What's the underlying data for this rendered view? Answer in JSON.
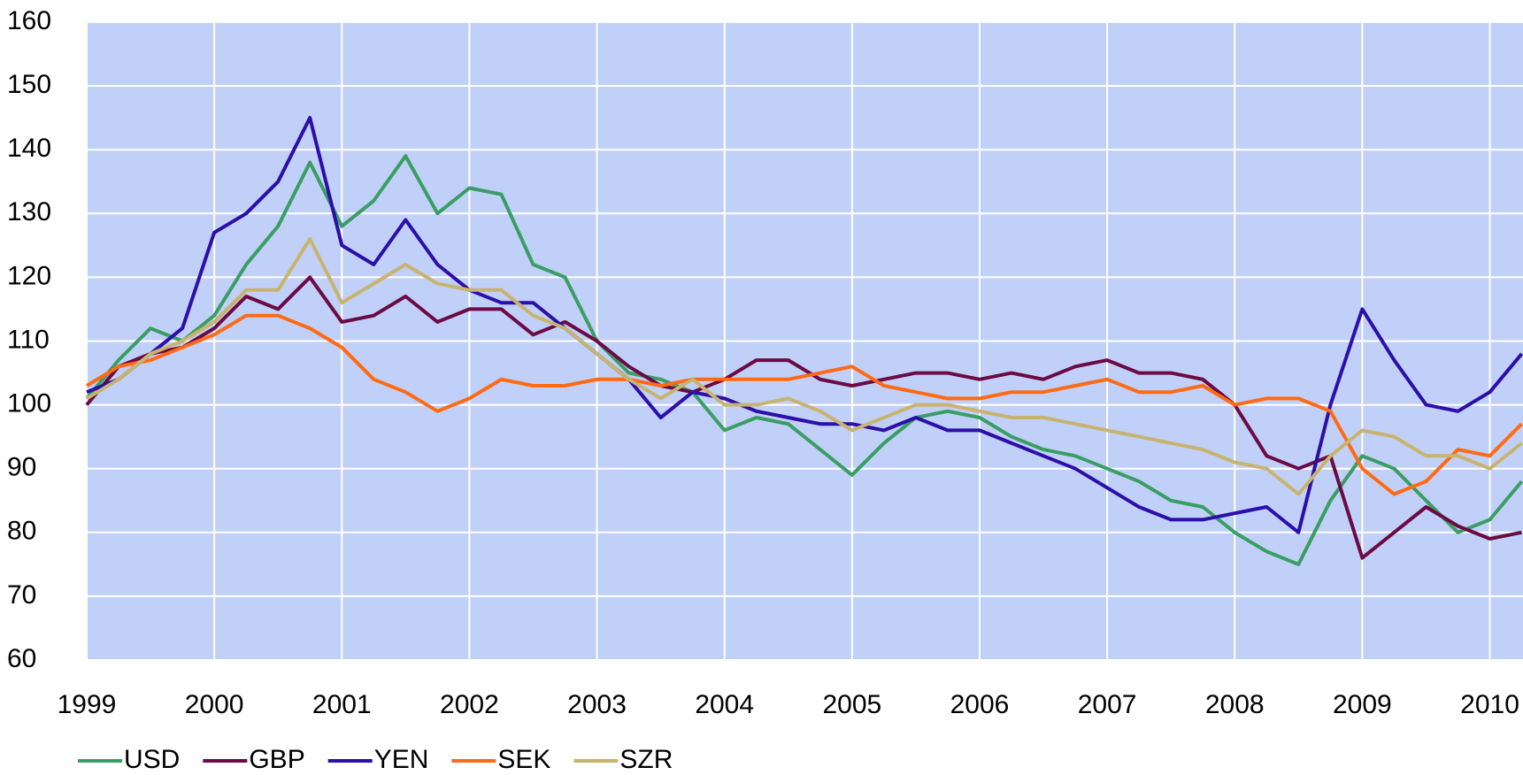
{
  "chart_data": {
    "type": "line",
    "x": [
      1999,
      1999.25,
      1999.5,
      1999.75,
      2000,
      2000.25,
      2000.5,
      2000.75,
      2001,
      2001.25,
      2001.5,
      2001.75,
      2002,
      2002.25,
      2002.5,
      2002.75,
      2003,
      2003.25,
      2003.5,
      2003.75,
      2004,
      2004.25,
      2004.5,
      2004.75,
      2005,
      2005.25,
      2005.5,
      2005.75,
      2006,
      2006.25,
      2006.5,
      2006.75,
      2007,
      2007.25,
      2007.5,
      2007.75,
      2008,
      2008.25,
      2008.5,
      2008.75,
      2009,
      2009.25,
      2009.5,
      2009.75,
      2010,
      2010.25
    ],
    "series": [
      {
        "name": "USD",
        "color": "#3a9e64",
        "values": [
          101,
          107,
          112,
          110,
          114,
          122,
          128,
          138,
          128,
          132,
          139,
          130,
          134,
          133,
          122,
          120,
          110,
          105,
          104,
          102,
          96,
          98,
          97,
          93,
          89,
          94,
          98,
          99,
          98,
          95,
          93,
          92,
          90,
          88,
          85,
          84,
          80,
          77,
          75,
          85,
          92,
          90,
          85,
          80,
          82,
          88
        ]
      },
      {
        "name": "GBP",
        "color": "#6b0a44",
        "values": [
          100,
          106,
          108,
          109,
          112,
          117,
          115,
          120,
          113,
          114,
          117,
          113,
          115,
          115,
          111,
          113,
          110,
          106,
          103,
          102,
          104,
          107,
          107,
          104,
          103,
          104,
          105,
          105,
          104,
          105,
          104,
          106,
          107,
          105,
          105,
          104,
          100,
          92,
          90,
          92,
          76,
          80,
          84,
          81,
          79,
          80
        ]
      },
      {
        "name": "YEN",
        "color": "#2b0fa8",
        "values": [
          102,
          104,
          108,
          112,
          127,
          130,
          135,
          145,
          125,
          122,
          129,
          122,
          118,
          116,
          116,
          112,
          108,
          104,
          98,
          102,
          101,
          99,
          98,
          97,
          97,
          96,
          98,
          96,
          96,
          94,
          92,
          90,
          87,
          84,
          82,
          82,
          83,
          84,
          80,
          100,
          115,
          107,
          100,
          99,
          102,
          108
        ]
      },
      {
        "name": "SEK",
        "color": "#ff6a13",
        "values": [
          103,
          106,
          107,
          109,
          111,
          114,
          114,
          112,
          109,
          104,
          102,
          99,
          101,
          104,
          103,
          103,
          104,
          104,
          103,
          104,
          104,
          104,
          104,
          105,
          106,
          103,
          102,
          101,
          101,
          102,
          102,
          103,
          104,
          102,
          102,
          103,
          100,
          101,
          101,
          99,
          90,
          86,
          88,
          93,
          92,
          97
        ]
      },
      {
        "name": "SZR",
        "color": "#c8b46e",
        "values": [
          101,
          104,
          108,
          110,
          113,
          118,
          118,
          126,
          116,
          119,
          122,
          119,
          118,
          118,
          114,
          112,
          108,
          104,
          101,
          104,
          100,
          100,
          101,
          99,
          96,
          98,
          100,
          100,
          99,
          98,
          98,
          97,
          96,
          95,
          94,
          93,
          91,
          90,
          86,
          92,
          96,
          95,
          92,
          92,
          90,
          94
        ]
      }
    ],
    "xlim": [
      1999,
      2010.26
    ],
    "xticks": [
      1999,
      2000,
      2001,
      2002,
      2003,
      2004,
      2005,
      2006,
      2007,
      2008,
      2009,
      2010
    ],
    "ylim": [
      60,
      160
    ],
    "yticks": [
      60,
      70,
      80,
      90,
      100,
      110,
      120,
      130,
      140,
      150,
      160
    ],
    "grid": true,
    "background": "#c0d0f8",
    "legend": "bottom-left"
  }
}
